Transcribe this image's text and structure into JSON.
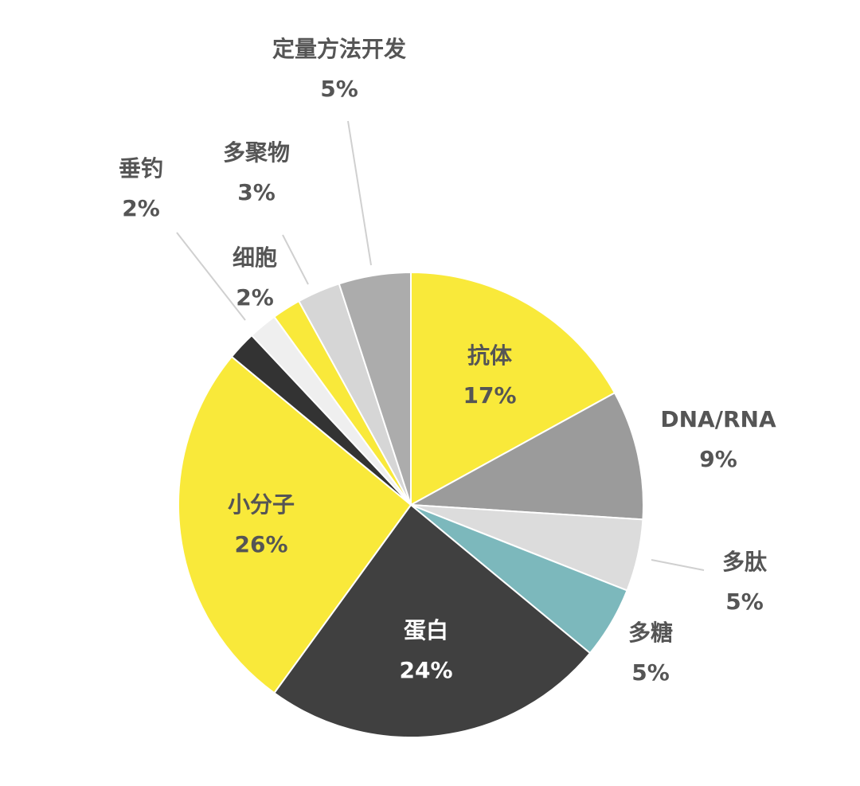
{
  "chart_data": {
    "type": "pie",
    "title": "",
    "slices": [
      {
        "label": "抗体",
        "value": 17,
        "display": "17%",
        "color": "#F9E93A"
      },
      {
        "label": "DNA/RNA",
        "value": 9,
        "display": "9%",
        "color": "#9B9B9B"
      },
      {
        "label": "多肽",
        "value": 5,
        "display": "5%",
        "color": "#DCDCDC"
      },
      {
        "label": "多糖",
        "value": 5,
        "display": "5%",
        "color": "#7CB8BC"
      },
      {
        "label": "蛋白",
        "value": 24,
        "display": "24%",
        "color": "#404040"
      },
      {
        "label": "小分子",
        "value": 26,
        "display": "26%",
        "color": "#F9E93A"
      },
      {
        "label": "垂钓",
        "value": 2,
        "display": "2%",
        "color": "#333333"
      },
      {
        "label": "",
        "value": 2,
        "display": "",
        "color": "#EFEFEF"
      },
      {
        "label": "细胞",
        "value": 2,
        "display": "2%",
        "color": "#F9E93A"
      },
      {
        "label": "多聚物",
        "value": 3,
        "display": "3%",
        "color": "#D6D6D6"
      },
      {
        "label": "定量方法开发",
        "value": 5,
        "display": "5%",
        "color": "#ACACAC"
      }
    ]
  }
}
